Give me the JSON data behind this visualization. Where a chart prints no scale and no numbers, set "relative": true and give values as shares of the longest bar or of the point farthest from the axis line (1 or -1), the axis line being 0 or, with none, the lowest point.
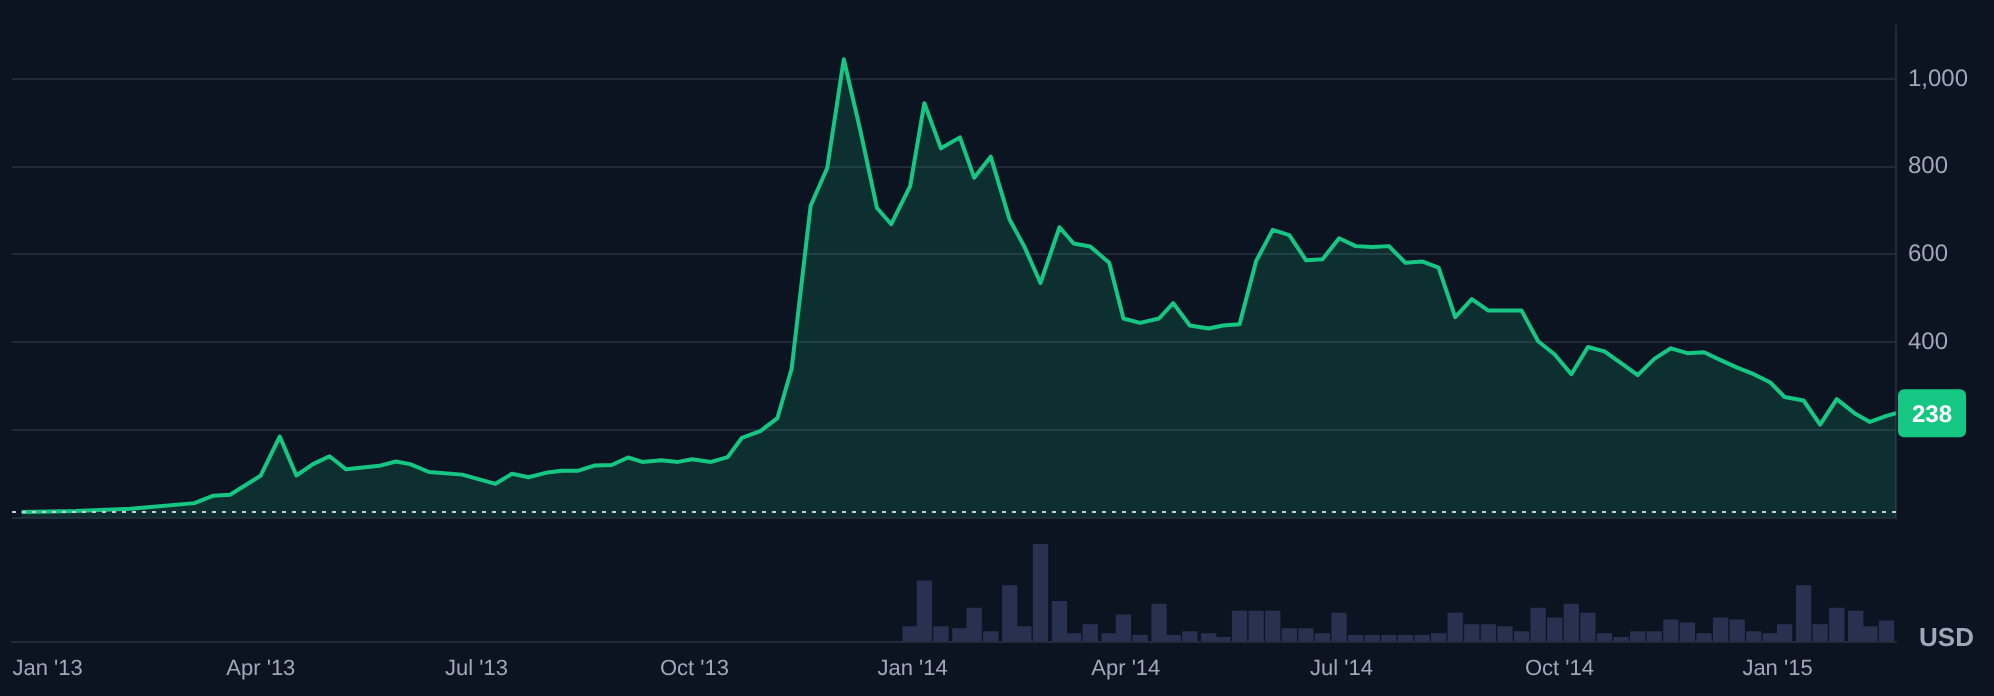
{
  "chart_data": [
    {
      "type": "area",
      "ylabel": "USD",
      "xlim": [
        "2012-12-17",
        "2015-02-20"
      ],
      "ylim": [
        0,
        1120
      ],
      "yticks": [
        {
          "value": 0,
          "label": null
        },
        {
          "value": 200,
          "label": null
        },
        {
          "value": 400,
          "label": "400"
        },
        {
          "value": 600,
          "label": "600"
        },
        {
          "value": 800,
          "label": "800"
        },
        {
          "value": 1000,
          "label": "1,000"
        }
      ],
      "grid": "y",
      "legend": false,
      "marker": "none",
      "line_style": "solid",
      "tick_labels": "y",
      "ref_lines": [
        {
          "axis": "y",
          "value": 13,
          "color": "#c8ccd6",
          "line_style": "dotted"
        }
      ],
      "annotations": [
        "238"
      ],
      "series": [
        {
          "color": "#16c784",
          "x": [
            "2012-12-21",
            "2013-01-13",
            "2013-02-05",
            "2013-03-04",
            "2013-03-12",
            "2013-03-19",
            "2013-04-01",
            "2013-04-09",
            "2013-04-16",
            "2013-04-23",
            "2013-04-30",
            "2013-05-07",
            "2013-05-21",
            "2013-05-28",
            "2013-06-03",
            "2013-06-11",
            "2013-06-25",
            "2013-07-09",
            "2013-07-16",
            "2013-07-23",
            "2013-07-31",
            "2013-08-06",
            "2013-08-13",
            "2013-08-20",
            "2013-08-27",
            "2013-09-03",
            "2013-09-09",
            "2013-09-17",
            "2013-09-24",
            "2013-09-30",
            "2013-10-08",
            "2013-10-15",
            "2013-10-21",
            "2013-10-29",
            "2013-11-05",
            "2013-11-11",
            "2013-11-19",
            "2013-11-26",
            "2013-12-03",
            "2013-12-10",
            "2013-12-17",
            "2013-12-23",
            "2013-12-31",
            "2014-01-06",
            "2014-01-13",
            "2014-01-21",
            "2014-01-27",
            "2014-02-03",
            "2014-02-11",
            "2014-02-17",
            "2014-02-24",
            "2014-03-04",
            "2014-03-10",
            "2014-03-17",
            "2014-03-25",
            "2014-03-31",
            "2014-04-07",
            "2014-04-15",
            "2014-04-21",
            "2014-04-28",
            "2014-05-06",
            "2014-05-12",
            "2014-05-19",
            "2014-05-26",
            "2014-06-02",
            "2014-06-09",
            "2014-06-16",
            "2014-06-23",
            "2014-06-30",
            "2014-07-07",
            "2014-07-14",
            "2014-07-21",
            "2014-07-28",
            "2014-08-04",
            "2014-08-11",
            "2014-08-18",
            "2014-08-25",
            "2014-09-01",
            "2014-09-08",
            "2014-09-15",
            "2014-09-22",
            "2014-09-29",
            "2014-10-06",
            "2014-10-13",
            "2014-10-20",
            "2014-10-27",
            "2014-11-03",
            "2014-11-10",
            "2014-11-17",
            "2014-11-24",
            "2014-12-01",
            "2014-12-08",
            "2014-12-15",
            "2014-12-22",
            "2014-12-29",
            "2015-01-04",
            "2015-01-12",
            "2015-01-19",
            "2015-01-26",
            "2015-02-03",
            "2015-02-09",
            "2015-02-16",
            "2015-02-20"
          ],
          "values": [
            13,
            15,
            20,
            33,
            50,
            52,
            96,
            185,
            96,
            122,
            140,
            110,
            118,
            128,
            122,
            104,
            98,
            77,
            100,
            92,
            103,
            107,
            107,
            119,
            120,
            137,
            127,
            131,
            127,
            133,
            127,
            138,
            182,
            198,
            227,
            340,
            711,
            797,
            1045,
            882,
            706,
            669,
            756,
            945,
            842,
            867,
            775,
            823,
            679,
            620,
            535,
            662,
            625,
            618,
            581,
            454,
            444,
            454,
            489,
            438,
            431,
            438,
            441,
            585,
            656,
            644,
            587,
            589,
            637,
            619,
            617,
            619,
            581,
            584,
            570,
            457,
            498,
            472,
            472,
            472,
            402,
            372,
            327,
            389,
            379,
            352,
            325,
            362,
            386,
            375,
            377,
            359,
            342,
            327,
            308,
            275,
            267,
            212,
            270,
            236,
            218,
            232,
            238
          ]
        }
      ]
    },
    {
      "type": "bar",
      "relative": true,
      "xlim": [
        "2012-12-17",
        "2015-02-20"
      ],
      "tick_labels": "x",
      "grid": false,
      "legend": false,
      "xticks": [
        {
          "value": "2013-01-01",
          "label": "Jan '13"
        },
        {
          "value": "2013-04-01",
          "label": "Apr '13"
        },
        {
          "value": "2013-07-01",
          "label": "Jul '13"
        },
        {
          "value": "2013-10-01",
          "label": "Oct '13"
        },
        {
          "value": "2014-01-01",
          "label": "Jan '14"
        },
        {
          "value": "2014-04-01",
          "label": "Apr '14"
        },
        {
          "value": "2014-07-01",
          "label": "Jul '14"
        },
        {
          "value": "2014-10-01",
          "label": "Oct '14"
        },
        {
          "value": "2015-01-01",
          "label": "Jan '15"
        }
      ],
      "series": [
        {
          "color": "#28314f",
          "x": [
            "2013-12-31",
            "2014-01-06",
            "2014-01-13",
            "2014-01-21",
            "2014-01-27",
            "2014-02-03",
            "2014-02-11",
            "2014-02-17",
            "2014-02-24",
            "2014-03-04",
            "2014-03-10",
            "2014-03-17",
            "2014-03-25",
            "2014-03-31",
            "2014-04-07",
            "2014-04-15",
            "2014-04-21",
            "2014-04-28",
            "2014-05-06",
            "2014-05-12",
            "2014-05-19",
            "2014-05-26",
            "2014-06-02",
            "2014-06-09",
            "2014-06-16",
            "2014-06-23",
            "2014-06-30",
            "2014-07-07",
            "2014-07-14",
            "2014-07-21",
            "2014-07-28",
            "2014-08-04",
            "2014-08-11",
            "2014-08-18",
            "2014-08-25",
            "2014-09-01",
            "2014-09-08",
            "2014-09-15",
            "2014-09-22",
            "2014-09-29",
            "2014-10-06",
            "2014-10-13",
            "2014-10-20",
            "2014-10-27",
            "2014-11-03",
            "2014-11-10",
            "2014-11-17",
            "2014-11-24",
            "2014-12-01",
            "2014-12-08",
            "2014-12-15",
            "2014-12-22",
            "2014-12-29",
            "2015-01-04",
            "2015-01-12",
            "2015-01-19",
            "2015-01-26",
            "2015-02-03",
            "2015-02-09",
            "2015-02-16"
          ],
          "values": [
            0.15,
            0.62,
            0.15,
            0.13,
            0.34,
            0.1,
            0.57,
            0.15,
            1,
            0.41,
            0.08,
            0.17,
            0.08,
            0.27,
            0.06,
            0.38,
            0.06,
            0.1,
            0.08,
            0.04,
            0.31,
            0.31,
            0.31,
            0.13,
            0.13,
            0.08,
            0.29,
            0.06,
            0.06,
            0.06,
            0.06,
            0.06,
            0.08,
            0.29,
            0.17,
            0.17,
            0.15,
            0.1,
            0.34,
            0.24,
            0.38,
            0.29,
            0.08,
            0.04,
            0.1,
            0.1,
            0.22,
            0.19,
            0.08,
            0.24,
            0.22,
            0.1,
            0.08,
            0.17,
            0.57,
            0.17,
            0.34,
            0.31,
            0.15,
            0.21
          ]
        }
      ]
    }
  ]
}
